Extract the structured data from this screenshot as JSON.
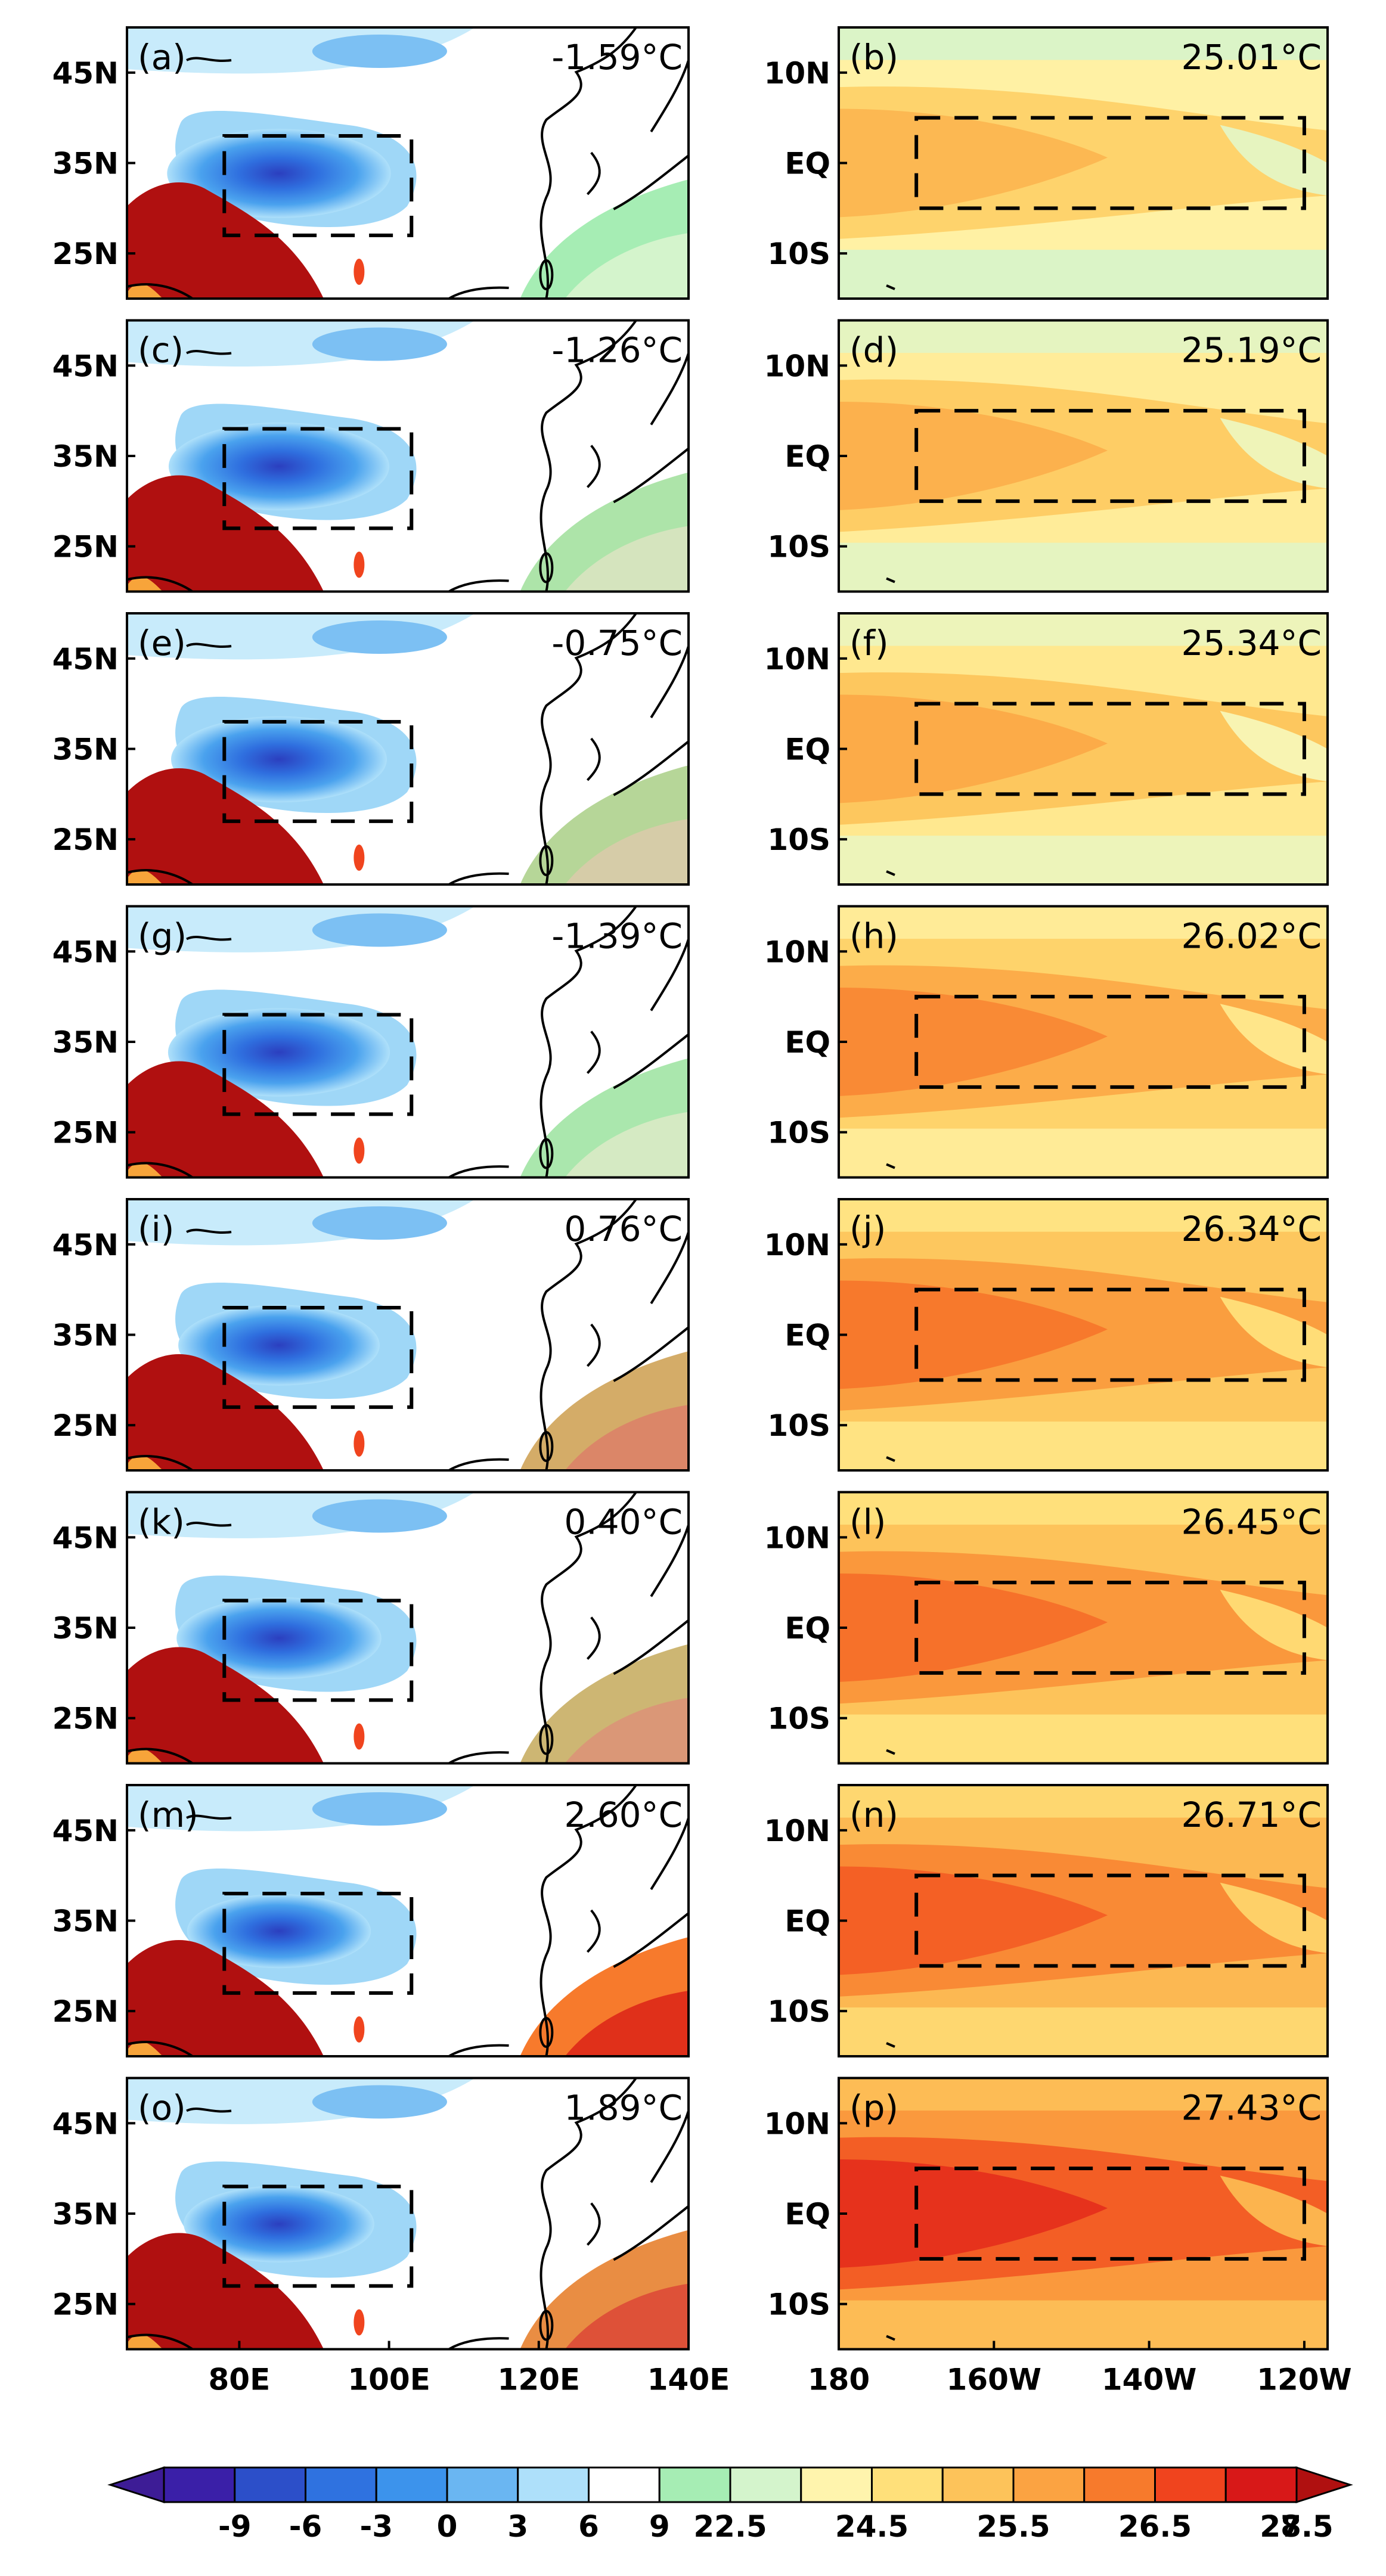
{
  "chart_data": {
    "type": "heatmap",
    "description_labels": "Multi-panel map figure: left column East Asia / Tibetan Plateau surface temperature, right column tropical Pacific SST",
    "left_column": {
      "lat_ticks": [
        "45N",
        "35N",
        "25N"
      ],
      "lon_ticks": [
        "80E",
        "100E",
        "120E",
        "140E"
      ],
      "lon_range": [
        65,
        140
      ],
      "lat_range": [
        20,
        50
      ],
      "box": {
        "lon": [
          78,
          103
        ],
        "lat": [
          27,
          38
        ]
      }
    },
    "right_column": {
      "lat_ticks": [
        "10N",
        "EQ",
        "10S"
      ],
      "lon_ticks": [
        "180",
        "160W",
        "140W",
        "120W"
      ],
      "lon_range": [
        -180,
        -117
      ],
      "lat_range": [
        -15,
        15
      ],
      "box": {
        "lon": [
          -170,
          -120
        ],
        "lat": [
          -5,
          5
        ]
      }
    },
    "panels": [
      {
        "left": {
          "label": "(a)",
          "value": "-1.59°C",
          "anomaly": -1.59
        },
        "right": {
          "label": "(b)",
          "value": "25.01°C",
          "sst": 25.01
        }
      },
      {
        "left": {
          "label": "(c)",
          "value": "-1.26°C",
          "anomaly": -1.26
        },
        "right": {
          "label": "(d)",
          "value": "25.19°C",
          "sst": 25.19
        }
      },
      {
        "left": {
          "label": "(e)",
          "value": "-0.75°C",
          "anomaly": -0.75
        },
        "right": {
          "label": "(f)",
          "value": "25.34°C",
          "sst": 25.34
        }
      },
      {
        "left": {
          "label": "(g)",
          "value": "-1.39°C",
          "anomaly": -1.39
        },
        "right": {
          "label": "(h)",
          "value": "26.02°C",
          "sst": 26.02
        }
      },
      {
        "left": {
          "label": "(i)",
          "value": "0.76°C",
          "anomaly": 0.76
        },
        "right": {
          "label": "(j)",
          "value": "26.34°C",
          "sst": 26.34
        }
      },
      {
        "left": {
          "label": "(k)",
          "value": "0.40°C",
          "anomaly": 0.4
        },
        "right": {
          "label": "(l)",
          "value": "26.45°C",
          "sst": 26.45
        }
      },
      {
        "left": {
          "label": "(m)",
          "value": "2.60°C",
          "anomaly": 2.6
        },
        "right": {
          "label": "(n)",
          "value": "26.71°C",
          "sst": 26.71
        }
      },
      {
        "left": {
          "label": "(o)",
          "value": "1.89°C",
          "anomaly": 1.89
        },
        "right": {
          "label": "(p)",
          "value": "27.43°C",
          "sst": 27.43
        }
      }
    ],
    "colorbar": {
      "labels": [
        "-9",
        "-6",
        "-3",
        "0",
        "3",
        "6",
        "9",
        "22.5",
        "24.5",
        "25.5",
        "26.5",
        "27.5",
        "28.5"
      ],
      "colors": [
        "#3a1fa8",
        "#2c4fc9",
        "#2f72e0",
        "#3c93ec",
        "#6ab6f2",
        "#aee0fa",
        "#ffffff",
        "#a6edb4",
        "#d4f4cc",
        "#fff4ad",
        "#ffe07a",
        "#fdc35a",
        "#fba342",
        "#f77a2c",
        "#f0441e",
        "#d81818"
      ],
      "end_colors": {
        "low": "#3d1c96",
        "high": "#b01010"
      }
    }
  }
}
